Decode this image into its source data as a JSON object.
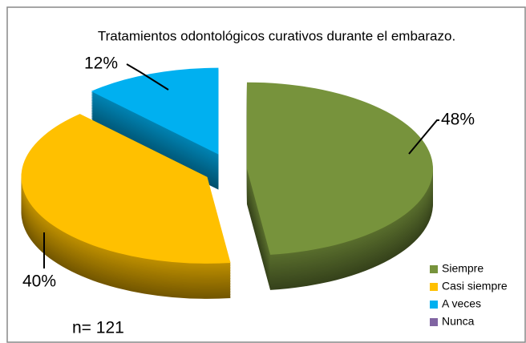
{
  "chart_data": {
    "type": "pie3d",
    "title": "Tratamientos odontológicos curativos durante el embarazo.",
    "categories": [
      "Siempre",
      "Casi siempre",
      "A veces",
      "Nunca"
    ],
    "values": [
      48,
      40,
      12,
      0
    ],
    "value_labels": [
      "48%",
      "40%",
      "12%",
      null
    ],
    "colors": [
      "#77933c",
      "#ffc000",
      "#00b0f0",
      "#8064a2"
    ],
    "annotation": "n= 121",
    "legend": "bottom-right"
  }
}
